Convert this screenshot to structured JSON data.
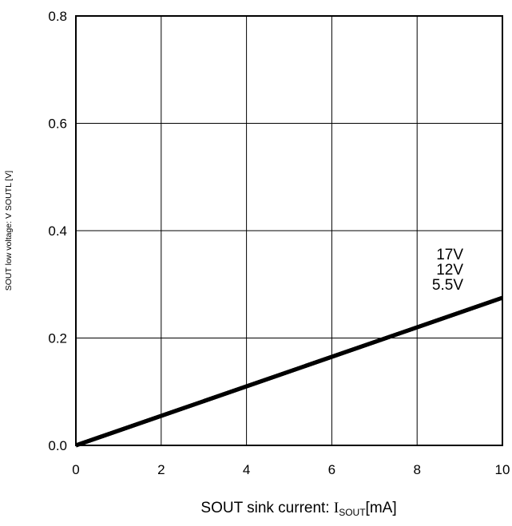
{
  "chart_data": {
    "type": "line",
    "title": "",
    "xlabel": {
      "prefix": "SOUT sink current: ",
      "symbol": "I",
      "subscript": "SOUT",
      "suffix": "[mA]"
    },
    "ylabel": "SOUT low voltage: V SOUTL [V]",
    "xlim": [
      0,
      10
    ],
    "ylim": [
      0,
      0.8
    ],
    "xticks": [
      0,
      2,
      4,
      6,
      8,
      10
    ],
    "yticks": [
      0.0,
      0.2,
      0.4,
      0.6,
      0.8
    ],
    "xtick_labels": [
      "0",
      "2",
      "4",
      "6",
      "8",
      "10"
    ],
    "ytick_labels": [
      "0.0",
      "0.2",
      "0.4",
      "0.6",
      "0.8"
    ],
    "grid": true,
    "line_color": "#000000",
    "series": [
      {
        "name": "17V",
        "x": [
          0,
          10
        ],
        "y": [
          0.0,
          0.275
        ]
      },
      {
        "name": "12V",
        "x": [
          0,
          10
        ],
        "y": [
          0.0,
          0.275
        ]
      },
      {
        "name": "5.5V",
        "x": [
          0,
          10
        ],
        "y": [
          0.0,
          0.275
        ]
      }
    ]
  }
}
